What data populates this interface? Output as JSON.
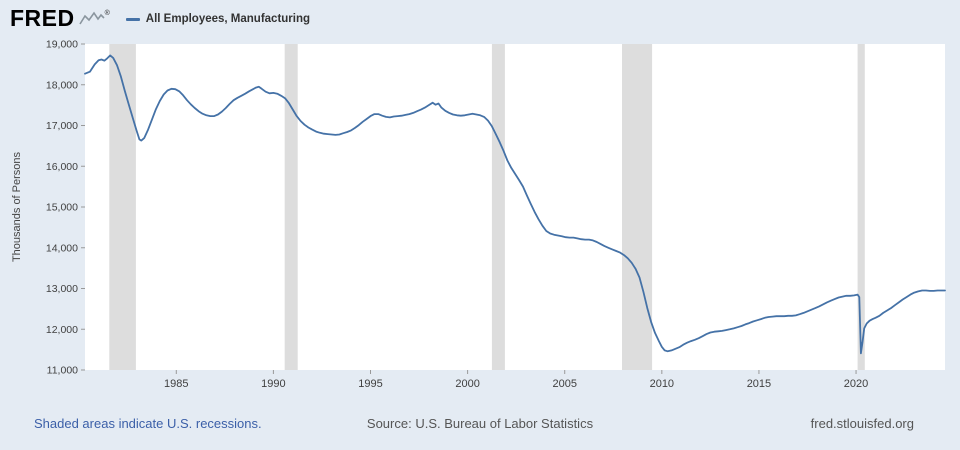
{
  "header": {
    "logo_text": "FRED",
    "registered": "®",
    "legend_label": "All Employees, Manufacturing"
  },
  "footer": {
    "recessions_note": "Shaded areas indicate U.S. recessions.",
    "source": "Source: U.S. Bureau of Labor Statistics",
    "site": "fred.stlouisfed.org"
  },
  "colors": {
    "background": "#e4ebf3",
    "plot_background": "#ffffff",
    "line": "#4572a7",
    "recession_band": "#dddddd",
    "tick_text": "#404040",
    "link": "#3b5fa8"
  },
  "chart_data": {
    "type": "line",
    "title": "All Employees, Manufacturing",
    "xlabel": "",
    "ylabel": "Thousands of Persons",
    "legend_position": "top-left",
    "grid": false,
    "x_range": [
      1980.3,
      2024.58
    ],
    "y_range": [
      11000,
      19000
    ],
    "y_ticks": [
      {
        "value": 11000,
        "label": "11,000"
      },
      {
        "value": 12000,
        "label": "12,000"
      },
      {
        "value": 13000,
        "label": "13,000"
      },
      {
        "value": 14000,
        "label": "14,000"
      },
      {
        "value": 15000,
        "label": "15,000"
      },
      {
        "value": 16000,
        "label": "16,000"
      },
      {
        "value": 17000,
        "label": "17,000"
      },
      {
        "value": 18000,
        "label": "18,000"
      },
      {
        "value": 19000,
        "label": "19,000"
      }
    ],
    "x_ticks": [
      {
        "value": 1985,
        "label": "1985"
      },
      {
        "value": 1990,
        "label": "1990"
      },
      {
        "value": 1995,
        "label": "1995"
      },
      {
        "value": 2000,
        "label": "2000"
      },
      {
        "value": 2005,
        "label": "2005"
      },
      {
        "value": 2010,
        "label": "2010"
      },
      {
        "value": 2015,
        "label": "2015"
      },
      {
        "value": 2020,
        "label": "2020"
      }
    ],
    "recession_bands": [
      [
        1981.55,
        1982.92
      ],
      [
        1990.58,
        1991.25
      ],
      [
        2001.25,
        2001.92
      ],
      [
        2007.95,
        2009.5
      ],
      [
        2020.08,
        2020.45
      ]
    ],
    "series": [
      {
        "name": "All Employees, Manufacturing",
        "color": "#4572a7",
        "points": [
          [
            1980.3,
            18270
          ],
          [
            1980.55,
            18320
          ],
          [
            1980.8,
            18500
          ],
          [
            1981.0,
            18600
          ],
          [
            1981.15,
            18620
          ],
          [
            1981.3,
            18590
          ],
          [
            1981.45,
            18650
          ],
          [
            1981.6,
            18720
          ],
          [
            1981.75,
            18660
          ],
          [
            1981.95,
            18480
          ],
          [
            1982.15,
            18200
          ],
          [
            1982.35,
            17850
          ],
          [
            1982.55,
            17520
          ],
          [
            1982.75,
            17200
          ],
          [
            1982.95,
            16880
          ],
          [
            1983.1,
            16660
          ],
          [
            1983.2,
            16630
          ],
          [
            1983.35,
            16690
          ],
          [
            1983.55,
            16900
          ],
          [
            1983.75,
            17150
          ],
          [
            1983.95,
            17400
          ],
          [
            1984.15,
            17600
          ],
          [
            1984.35,
            17760
          ],
          [
            1984.55,
            17860
          ],
          [
            1984.75,
            17900
          ],
          [
            1984.95,
            17890
          ],
          [
            1985.15,
            17840
          ],
          [
            1985.35,
            17740
          ],
          [
            1985.55,
            17620
          ],
          [
            1985.75,
            17520
          ],
          [
            1985.95,
            17430
          ],
          [
            1986.15,
            17350
          ],
          [
            1986.35,
            17290
          ],
          [
            1986.55,
            17250
          ],
          [
            1986.75,
            17230
          ],
          [
            1986.95,
            17230
          ],
          [
            1987.15,
            17270
          ],
          [
            1987.35,
            17340
          ],
          [
            1987.55,
            17430
          ],
          [
            1987.75,
            17530
          ],
          [
            1987.95,
            17620
          ],
          [
            1988.15,
            17680
          ],
          [
            1988.35,
            17730
          ],
          [
            1988.55,
            17780
          ],
          [
            1988.75,
            17840
          ],
          [
            1988.95,
            17890
          ],
          [
            1989.1,
            17930
          ],
          [
            1989.25,
            17950
          ],
          [
            1989.4,
            17900
          ],
          [
            1989.6,
            17830
          ],
          [
            1989.8,
            17790
          ],
          [
            1990.0,
            17800
          ],
          [
            1990.2,
            17780
          ],
          [
            1990.4,
            17730
          ],
          [
            1990.6,
            17670
          ],
          [
            1990.8,
            17550
          ],
          [
            1991.0,
            17390
          ],
          [
            1991.2,
            17230
          ],
          [
            1991.4,
            17110
          ],
          [
            1991.6,
            17020
          ],
          [
            1991.8,
            16950
          ],
          [
            1992.0,
            16900
          ],
          [
            1992.2,
            16850
          ],
          [
            1992.4,
            16820
          ],
          [
            1992.6,
            16800
          ],
          [
            1992.8,
            16790
          ],
          [
            1993.0,
            16780
          ],
          [
            1993.2,
            16770
          ],
          [
            1993.4,
            16780
          ],
          [
            1993.6,
            16810
          ],
          [
            1993.8,
            16840
          ],
          [
            1994.0,
            16880
          ],
          [
            1994.2,
            16940
          ],
          [
            1994.4,
            17010
          ],
          [
            1994.6,
            17090
          ],
          [
            1994.8,
            17160
          ],
          [
            1995.0,
            17230
          ],
          [
            1995.2,
            17280
          ],
          [
            1995.4,
            17280
          ],
          [
            1995.6,
            17240
          ],
          [
            1995.8,
            17210
          ],
          [
            1996.0,
            17200
          ],
          [
            1996.2,
            17220
          ],
          [
            1996.4,
            17230
          ],
          [
            1996.6,
            17240
          ],
          [
            1996.8,
            17260
          ],
          [
            1997.0,
            17280
          ],
          [
            1997.2,
            17310
          ],
          [
            1997.4,
            17350
          ],
          [
            1997.6,
            17390
          ],
          [
            1997.8,
            17440
          ],
          [
            1998.0,
            17500
          ],
          [
            1998.2,
            17560
          ],
          [
            1998.35,
            17510
          ],
          [
            1998.5,
            17540
          ],
          [
            1998.65,
            17440
          ],
          [
            1998.85,
            17360
          ],
          [
            1999.05,
            17310
          ],
          [
            1999.25,
            17270
          ],
          [
            1999.45,
            17250
          ],
          [
            1999.65,
            17240
          ],
          [
            1999.85,
            17250
          ],
          [
            2000.05,
            17270
          ],
          [
            2000.25,
            17290
          ],
          [
            2000.45,
            17270
          ],
          [
            2000.65,
            17250
          ],
          [
            2000.85,
            17210
          ],
          [
            2001.05,
            17120
          ],
          [
            2001.25,
            16980
          ],
          [
            2001.45,
            16790
          ],
          [
            2001.65,
            16590
          ],
          [
            2001.85,
            16380
          ],
          [
            2002.05,
            16140
          ],
          [
            2002.25,
            15960
          ],
          [
            2002.45,
            15810
          ],
          [
            2002.65,
            15660
          ],
          [
            2002.85,
            15500
          ],
          [
            2003.05,
            15290
          ],
          [
            2003.25,
            15080
          ],
          [
            2003.45,
            14880
          ],
          [
            2003.65,
            14700
          ],
          [
            2003.85,
            14540
          ],
          [
            2004.05,
            14410
          ],
          [
            2004.25,
            14350
          ],
          [
            2004.45,
            14320
          ],
          [
            2004.65,
            14300
          ],
          [
            2004.85,
            14280
          ],
          [
            2005.05,
            14260
          ],
          [
            2005.25,
            14250
          ],
          [
            2005.45,
            14250
          ],
          [
            2005.65,
            14230
          ],
          [
            2005.85,
            14210
          ],
          [
            2006.05,
            14200
          ],
          [
            2006.25,
            14200
          ],
          [
            2006.45,
            14180
          ],
          [
            2006.65,
            14140
          ],
          [
            2006.85,
            14090
          ],
          [
            2007.05,
            14040
          ],
          [
            2007.25,
            14000
          ],
          [
            2007.45,
            13960
          ],
          [
            2007.65,
            13920
          ],
          [
            2007.85,
            13880
          ],
          [
            2008.05,
            13820
          ],
          [
            2008.25,
            13740
          ],
          [
            2008.45,
            13630
          ],
          [
            2008.65,
            13480
          ],
          [
            2008.85,
            13270
          ],
          [
            2009.05,
            12920
          ],
          [
            2009.25,
            12520
          ],
          [
            2009.45,
            12180
          ],
          [
            2009.65,
            11910
          ],
          [
            2009.85,
            11710
          ],
          [
            2010.0,
            11570
          ],
          [
            2010.15,
            11480
          ],
          [
            2010.3,
            11460
          ],
          [
            2010.5,
            11480
          ],
          [
            2010.7,
            11520
          ],
          [
            2010.9,
            11560
          ],
          [
            2011.1,
            11620
          ],
          [
            2011.3,
            11670
          ],
          [
            2011.5,
            11710
          ],
          [
            2011.7,
            11740
          ],
          [
            2011.9,
            11780
          ],
          [
            2012.1,
            11830
          ],
          [
            2012.3,
            11880
          ],
          [
            2012.5,
            11920
          ],
          [
            2012.7,
            11940
          ],
          [
            2012.9,
            11950
          ],
          [
            2013.1,
            11960
          ],
          [
            2013.3,
            11980
          ],
          [
            2013.5,
            12000
          ],
          [
            2013.7,
            12020
          ],
          [
            2013.9,
            12050
          ],
          [
            2014.1,
            12080
          ],
          [
            2014.3,
            12120
          ],
          [
            2014.5,
            12150
          ],
          [
            2014.7,
            12190
          ],
          [
            2014.9,
            12220
          ],
          [
            2015.1,
            12250
          ],
          [
            2015.3,
            12280
          ],
          [
            2015.5,
            12300
          ],
          [
            2015.7,
            12310
          ],
          [
            2015.9,
            12320
          ],
          [
            2016.1,
            12320
          ],
          [
            2016.3,
            12320
          ],
          [
            2016.5,
            12330
          ],
          [
            2016.7,
            12330
          ],
          [
            2016.9,
            12340
          ],
          [
            2017.1,
            12370
          ],
          [
            2017.3,
            12400
          ],
          [
            2017.5,
            12440
          ],
          [
            2017.7,
            12480
          ],
          [
            2017.9,
            12520
          ],
          [
            2018.1,
            12560
          ],
          [
            2018.3,
            12610
          ],
          [
            2018.5,
            12660
          ],
          [
            2018.7,
            12700
          ],
          [
            2018.9,
            12740
          ],
          [
            2019.1,
            12780
          ],
          [
            2019.3,
            12800
          ],
          [
            2019.5,
            12820
          ],
          [
            2019.7,
            12820
          ],
          [
            2019.9,
            12830
          ],
          [
            2020.08,
            12850
          ],
          [
            2020.17,
            12790
          ],
          [
            2020.25,
            11410
          ],
          [
            2020.33,
            11680
          ],
          [
            2020.42,
            12020
          ],
          [
            2020.55,
            12140
          ],
          [
            2020.7,
            12210
          ],
          [
            2020.85,
            12250
          ],
          [
            2021.0,
            12280
          ],
          [
            2021.2,
            12330
          ],
          [
            2021.4,
            12400
          ],
          [
            2021.6,
            12460
          ],
          [
            2021.8,
            12520
          ],
          [
            2022.0,
            12590
          ],
          [
            2022.2,
            12660
          ],
          [
            2022.4,
            12730
          ],
          [
            2022.6,
            12790
          ],
          [
            2022.8,
            12850
          ],
          [
            2023.0,
            12900
          ],
          [
            2023.2,
            12930
          ],
          [
            2023.4,
            12950
          ],
          [
            2023.6,
            12950
          ],
          [
            2023.8,
            12940
          ],
          [
            2024.0,
            12940
          ],
          [
            2024.2,
            12950
          ],
          [
            2024.4,
            12950
          ],
          [
            2024.58,
            12950
          ]
        ]
      }
    ]
  }
}
